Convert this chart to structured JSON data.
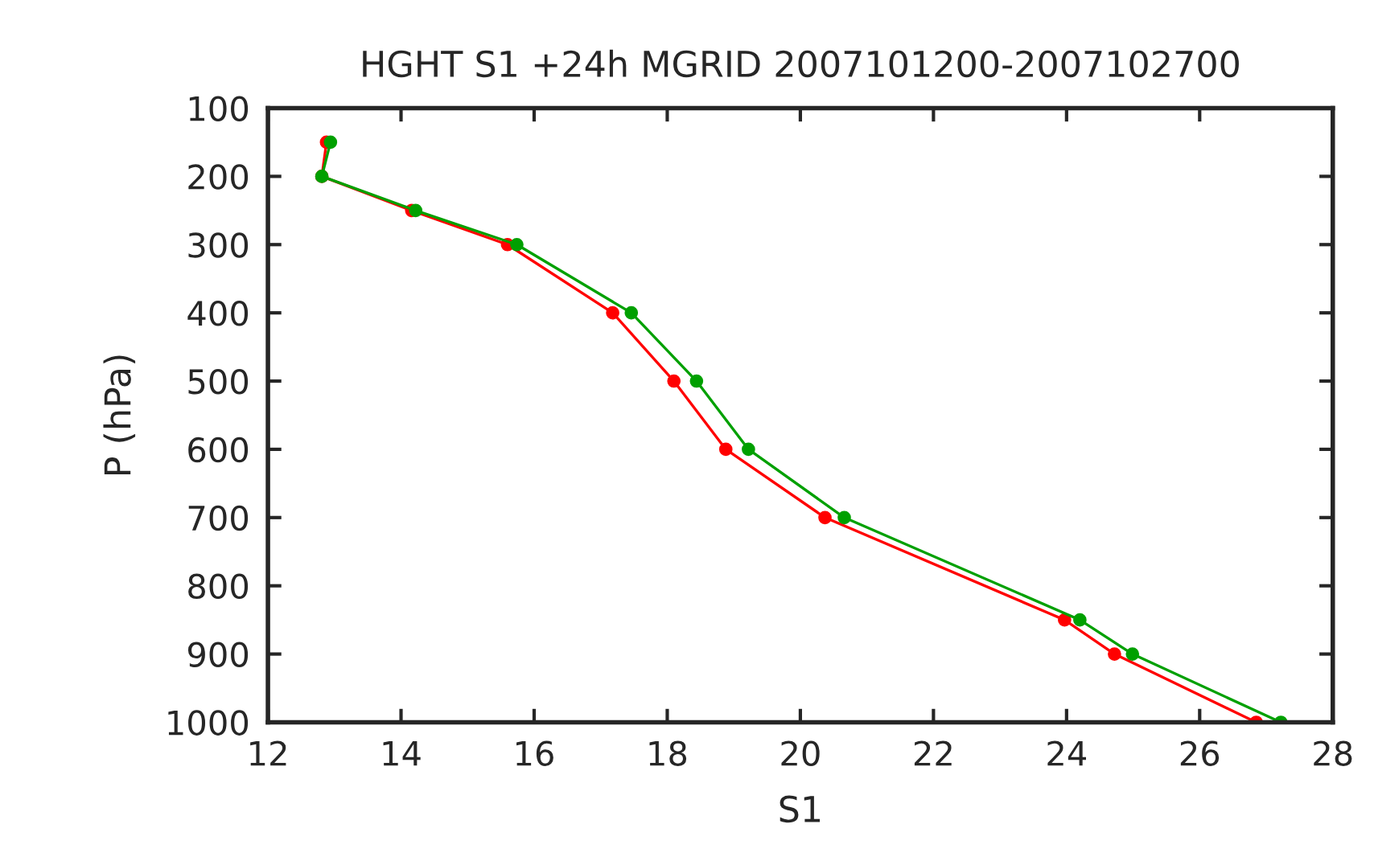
{
  "chart_data": {
    "type": "line",
    "title": "HGHT S1 +24h MGRID 2007101200-2007102700",
    "xlabel": "S1",
    "ylabel": "P (hPa)",
    "xlim": [
      12,
      28
    ],
    "xticks": [
      12,
      14,
      16,
      18,
      20,
      22,
      24,
      26,
      28
    ],
    "ylim": [
      1000,
      100
    ],
    "yticks": [
      100,
      200,
      300,
      400,
      500,
      600,
      700,
      800,
      900,
      1000
    ],
    "grid": false,
    "marker": "circle",
    "line_style": "solid",
    "series": [
      {
        "color": "#ff0000",
        "x": [
          12.88,
          12.81,
          14.16,
          15.6,
          17.18,
          18.1,
          18.88,
          20.37,
          23.97,
          24.72,
          26.85
        ],
        "values": [
          150,
          200,
          250,
          300,
          400,
          500,
          600,
          700,
          850,
          900,
          1000
        ]
      },
      {
        "color": "#00a000",
        "x": [
          12.94,
          12.81,
          14.22,
          15.74,
          17.46,
          18.44,
          19.22,
          20.66,
          24.2,
          24.99,
          27.22
        ],
        "values": [
          150,
          200,
          250,
          300,
          400,
          500,
          600,
          700,
          850,
          900,
          1000
        ]
      }
    ]
  }
}
